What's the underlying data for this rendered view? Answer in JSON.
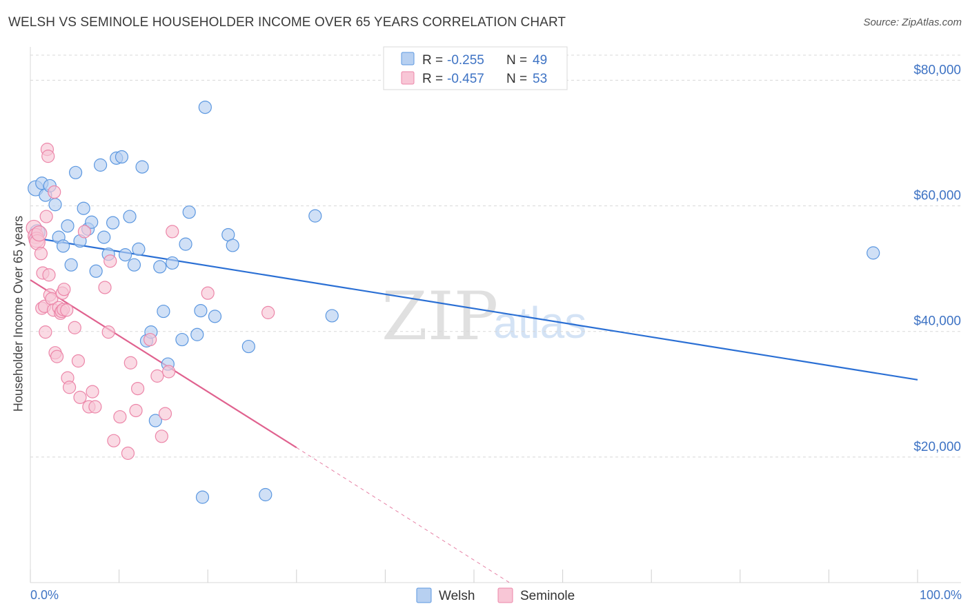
{
  "header": {
    "title": "WELSH VS SEMINOLE HOUSEHOLDER INCOME OVER 65 YEARS CORRELATION CHART",
    "source": "Source: ZipAtlas.com"
  },
  "watermark": {
    "zip": "ZIP",
    "atlas": "atlas"
  },
  "colors": {
    "welsh": "#5b97e0",
    "welsh_fill": "#b7d0f1",
    "welsh_line": "#2a6fd4",
    "seminole": "#ec85a8",
    "seminole_fill": "#f8c6d6",
    "seminole_line": "#e0628f",
    "grid": "#d8d8d8",
    "tick_text": "#3e73c4"
  },
  "stats": [
    {
      "key_r": "R = ",
      "r": "-0.255",
      "key_n": "N = ",
      "n": "49",
      "series": "welsh"
    },
    {
      "key_r": "R = ",
      "r": "-0.457",
      "key_n": "N = ",
      "n": "53",
      "series": "seminole"
    }
  ],
  "chart_data": {
    "type": "scatter",
    "title": "WELSH VS SEMINOLE HOUSEHOLDER INCOME OVER 65 YEARS CORRELATION CHART",
    "xlabel": "",
    "ylabel": "Householder Income Over 65 years",
    "xlim": [
      0,
      100
    ],
    "ylim": [
      0,
      84000
    ],
    "x_tick_labels": [
      "0.0%",
      "100.0%"
    ],
    "y_ticks": [
      20000,
      40000,
      60000,
      80000
    ],
    "y_tick_labels": [
      "$20,000",
      "$40,000",
      "$60,000",
      "$80,000"
    ],
    "series": [
      {
        "name": "Welsh",
        "color": "#5b97e0",
        "trend": {
          "x": [
            0,
            100
          ],
          "y": [
            55000,
            32300
          ],
          "dashed_extension": false
        },
        "points": [
          [
            0.6,
            62800
          ],
          [
            0.8,
            55800
          ],
          [
            1.3,
            63600
          ],
          [
            1.7,
            61700
          ],
          [
            2.2,
            63200
          ],
          [
            2.8,
            60200
          ],
          [
            3.2,
            55000
          ],
          [
            3.7,
            53600
          ],
          [
            4.2,
            56800
          ],
          [
            4.6,
            50600
          ],
          [
            5.1,
            65300
          ],
          [
            5.6,
            54400
          ],
          [
            6.0,
            59600
          ],
          [
            6.5,
            56300
          ],
          [
            6.9,
            57400
          ],
          [
            7.4,
            49600
          ],
          [
            7.9,
            66500
          ],
          [
            8.3,
            55000
          ],
          [
            8.8,
            52300
          ],
          [
            9.3,
            57300
          ],
          [
            9.7,
            67600
          ],
          [
            10.3,
            67800
          ],
          [
            10.7,
            52200
          ],
          [
            11.2,
            58300
          ],
          [
            11.7,
            50600
          ],
          [
            12.2,
            53100
          ],
          [
            12.6,
            66200
          ],
          [
            13.1,
            38500
          ],
          [
            13.6,
            39900
          ],
          [
            14.1,
            25800
          ],
          [
            14.6,
            50300
          ],
          [
            15.0,
            43200
          ],
          [
            15.5,
            34800
          ],
          [
            16.0,
            50900
          ],
          [
            17.1,
            38700
          ],
          [
            17.5,
            53900
          ],
          [
            17.9,
            59000
          ],
          [
            18.8,
            39500
          ],
          [
            19.2,
            43300
          ],
          [
            19.4,
            13600
          ],
          [
            19.7,
            75700
          ],
          [
            20.8,
            42400
          ],
          [
            22.3,
            55400
          ],
          [
            22.8,
            53700
          ],
          [
            24.6,
            37600
          ],
          [
            26.5,
            14000
          ],
          [
            32.1,
            58400
          ],
          [
            34.0,
            42500
          ],
          [
            95.0,
            52500
          ]
        ]
      },
      {
        "name": "Seminole",
        "color": "#ec85a8",
        "trend": {
          "x": [
            0,
            30
          ],
          "y": [
            48200,
            21500
          ],
          "dashed_extension": true,
          "dashed_to": [
            54,
            0
          ]
        },
        "points": [
          [
            0.4,
            56500
          ],
          [
            0.6,
            55200
          ],
          [
            0.7,
            54600
          ],
          [
            0.8,
            54200
          ],
          [
            1.0,
            55600
          ],
          [
            1.2,
            52400
          ],
          [
            1.3,
            43700
          ],
          [
            1.4,
            49300
          ],
          [
            1.6,
            44000
          ],
          [
            1.7,
            39900
          ],
          [
            1.8,
            58300
          ],
          [
            1.9,
            69000
          ],
          [
            2.0,
            67900
          ],
          [
            2.1,
            49000
          ],
          [
            2.2,
            45800
          ],
          [
            2.4,
            45200
          ],
          [
            2.6,
            43400
          ],
          [
            2.7,
            62200
          ],
          [
            2.8,
            36600
          ],
          [
            3.0,
            36000
          ],
          [
            3.2,
            43800
          ],
          [
            3.4,
            42900
          ],
          [
            3.5,
            43200
          ],
          [
            3.6,
            46100
          ],
          [
            3.7,
            43500
          ],
          [
            3.8,
            46700
          ],
          [
            4.1,
            43400
          ],
          [
            4.2,
            32600
          ],
          [
            4.4,
            31100
          ],
          [
            5.0,
            40600
          ],
          [
            5.4,
            35300
          ],
          [
            5.6,
            29500
          ],
          [
            6.1,
            55900
          ],
          [
            6.6,
            28000
          ],
          [
            7.0,
            30400
          ],
          [
            7.3,
            28000
          ],
          [
            8.4,
            47000
          ],
          [
            8.8,
            39900
          ],
          [
            9.0,
            51200
          ],
          [
            9.4,
            22600
          ],
          [
            10.1,
            26400
          ],
          [
            11.0,
            20600
          ],
          [
            11.3,
            35000
          ],
          [
            11.9,
            27400
          ],
          [
            12.1,
            30900
          ],
          [
            13.5,
            38700
          ],
          [
            14.3,
            32900
          ],
          [
            14.8,
            23300
          ],
          [
            15.2,
            26900
          ],
          [
            15.6,
            33600
          ],
          [
            16.0,
            55900
          ],
          [
            20.0,
            46100
          ],
          [
            26.8,
            43000
          ]
        ]
      }
    ],
    "legend": [
      "Welsh",
      "Seminole"
    ],
    "legend_position": "bottom-center",
    "grid": true
  }
}
